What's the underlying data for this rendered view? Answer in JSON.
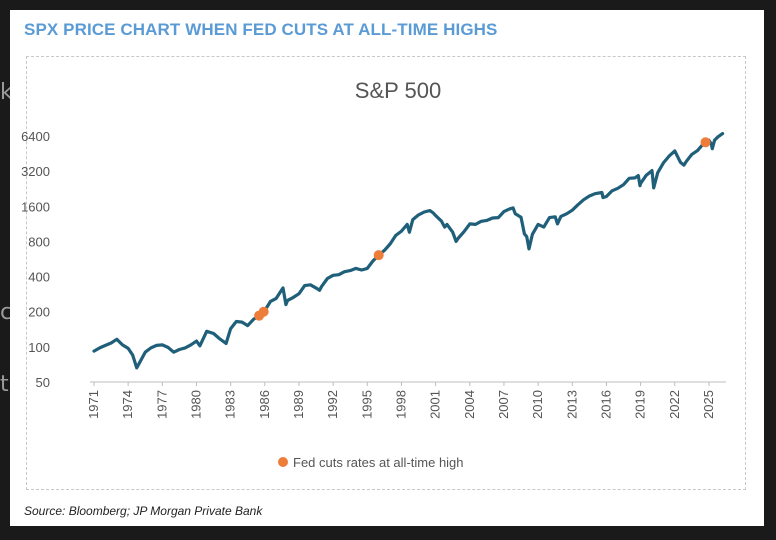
{
  "headline": "SPX PRICE CHART WHEN FED CUTS AT ALL-TIME HIGHS",
  "source": "Source: Bloomberg; JP Morgan Private Bank",
  "colors": {
    "headline": "#5b9bd5",
    "line": "#1f5f7a",
    "marker": "#ee7d3a",
    "background": "#1a1a1a"
  },
  "chart_data": {
    "type": "line",
    "title": "S&P 500",
    "y_scale": "log2",
    "ylim": [
      50,
      7200
    ],
    "y_ticks": [
      50,
      100,
      200,
      400,
      800,
      1600,
      3200,
      6400
    ],
    "y_tick_labels": [
      "50",
      "100",
      "200",
      "400",
      "800",
      "1600",
      "3200",
      "6400"
    ],
    "xlim": [
      1971,
      2026.5
    ],
    "x_ticks": [
      1971,
      1974,
      1977,
      1980,
      1983,
      1986,
      1989,
      1992,
      1995,
      1998,
      2001,
      2004,
      2007,
      2010,
      2013,
      2016,
      2019,
      2022,
      2025
    ],
    "x_tick_labels": [
      "1971",
      "1974",
      "1977",
      "1980",
      "1983",
      "1986",
      "1989",
      "1992",
      "1995",
      "1998",
      "2001",
      "2004",
      "2007",
      "2010",
      "2013",
      "2016",
      "2019",
      "2022",
      "2025"
    ],
    "grid": false,
    "legend": {
      "position": "bottom",
      "entries": [
        "Fed cuts rates at all-time high"
      ]
    },
    "series": [
      {
        "name": "",
        "points": [
          [
            1971.0,
            92
          ],
          [
            1971.5,
            98
          ],
          [
            1972.0,
            103
          ],
          [
            1972.5,
            108
          ],
          [
            1973.0,
            116
          ],
          [
            1973.5,
            104
          ],
          [
            1974.0,
            97
          ],
          [
            1974.4,
            85
          ],
          [
            1974.75,
            66
          ],
          [
            1975.0,
            73
          ],
          [
            1975.5,
            90
          ],
          [
            1976.0,
            98
          ],
          [
            1976.5,
            103
          ],
          [
            1977.0,
            104
          ],
          [
            1977.5,
            99
          ],
          [
            1978.0,
            90
          ],
          [
            1978.5,
            95
          ],
          [
            1979.0,
            98
          ],
          [
            1979.5,
            104
          ],
          [
            1980.0,
            112
          ],
          [
            1980.3,
            102
          ],
          [
            1980.9,
            136
          ],
          [
            1981.5,
            130
          ],
          [
            1982.0,
            118
          ],
          [
            1982.6,
            107
          ],
          [
            1983.0,
            143
          ],
          [
            1983.5,
            165
          ],
          [
            1984.0,
            163
          ],
          [
            1984.5,
            152
          ],
          [
            1985.0,
            172
          ],
          [
            1985.5,
            185
          ],
          [
            1986.0,
            205
          ],
          [
            1986.5,
            245
          ],
          [
            1987.0,
            260
          ],
          [
            1987.6,
            320
          ],
          [
            1987.85,
            230
          ],
          [
            1988.0,
            250
          ],
          [
            1988.5,
            265
          ],
          [
            1989.0,
            285
          ],
          [
            1989.5,
            335
          ],
          [
            1990.0,
            340
          ],
          [
            1990.6,
            315
          ],
          [
            1990.8,
            305
          ],
          [
            1991.0,
            330
          ],
          [
            1991.5,
            385
          ],
          [
            1992.0,
            410
          ],
          [
            1992.5,
            415
          ],
          [
            1993.0,
            440
          ],
          [
            1993.5,
            450
          ],
          [
            1994.0,
            470
          ],
          [
            1994.5,
            455
          ],
          [
            1995.0,
            470
          ],
          [
            1995.5,
            545
          ],
          [
            1996.0,
            610
          ],
          [
            1996.5,
            670
          ],
          [
            1997.0,
            760
          ],
          [
            1997.5,
            900
          ],
          [
            1998.0,
            980
          ],
          [
            1998.5,
            1120
          ],
          [
            1998.7,
            960
          ],
          [
            1999.0,
            1230
          ],
          [
            1999.5,
            1350
          ],
          [
            2000.0,
            1430
          ],
          [
            2000.5,
            1470
          ],
          [
            2000.8,
            1400
          ],
          [
            2001.0,
            1330
          ],
          [
            2001.5,
            1200
          ],
          [
            2001.8,
            1060
          ],
          [
            2002.0,
            1120
          ],
          [
            2002.5,
            960
          ],
          [
            2002.8,
            800
          ],
          [
            2003.0,
            855
          ],
          [
            2003.5,
            970
          ],
          [
            2004.0,
            1130
          ],
          [
            2004.5,
            1120
          ],
          [
            2005.0,
            1190
          ],
          [
            2005.5,
            1210
          ],
          [
            2006.0,
            1270
          ],
          [
            2006.5,
            1280
          ],
          [
            2007.0,
            1440
          ],
          [
            2007.5,
            1520
          ],
          [
            2007.8,
            1550
          ],
          [
            2008.0,
            1380
          ],
          [
            2008.5,
            1290
          ],
          [
            2008.8,
            930
          ],
          [
            2009.0,
            880
          ],
          [
            2009.2,
            690
          ],
          [
            2009.5,
            920
          ],
          [
            2010.0,
            1120
          ],
          [
            2010.5,
            1060
          ],
          [
            2011.0,
            1280
          ],
          [
            2011.5,
            1300
          ],
          [
            2011.7,
            1130
          ],
          [
            2012.0,
            1310
          ],
          [
            2012.5,
            1380
          ],
          [
            2013.0,
            1480
          ],
          [
            2013.5,
            1650
          ],
          [
            2014.0,
            1820
          ],
          [
            2014.5,
            1960
          ],
          [
            2015.0,
            2050
          ],
          [
            2015.6,
            2100
          ],
          [
            2015.7,
            1900
          ],
          [
            2016.0,
            1940
          ],
          [
            2016.5,
            2170
          ],
          [
            2017.0,
            2280
          ],
          [
            2017.5,
            2450
          ],
          [
            2018.0,
            2780
          ],
          [
            2018.5,
            2800
          ],
          [
            2018.8,
            2930
          ],
          [
            2018.95,
            2400
          ],
          [
            2019.0,
            2510
          ],
          [
            2019.5,
            2950
          ],
          [
            2020.0,
            3230
          ],
          [
            2020.15,
            2300
          ],
          [
            2020.5,
            3100
          ],
          [
            2021.0,
            3760
          ],
          [
            2021.5,
            4300
          ],
          [
            2022.0,
            4770
          ],
          [
            2022.5,
            3800
          ],
          [
            2022.8,
            3600
          ],
          [
            2023.0,
            3850
          ],
          [
            2023.5,
            4450
          ],
          [
            2024.0,
            4800
          ],
          [
            2024.5,
            5460
          ],
          [
            2024.72,
            5700
          ],
          [
            2025.0,
            5880
          ],
          [
            2025.2,
            5500
          ],
          [
            2025.3,
            4980
          ],
          [
            2025.5,
            5900
          ],
          [
            2025.8,
            6300
          ],
          [
            2026.2,
            6700
          ]
        ]
      }
    ],
    "markers": {
      "name": "Fed cuts rates at all-time high",
      "points": [
        [
          1985.5,
          185
        ],
        [
          1985.9,
          200
        ],
        [
          1996.0,
          610
        ],
        [
          2024.7,
          5650
        ]
      ]
    }
  }
}
